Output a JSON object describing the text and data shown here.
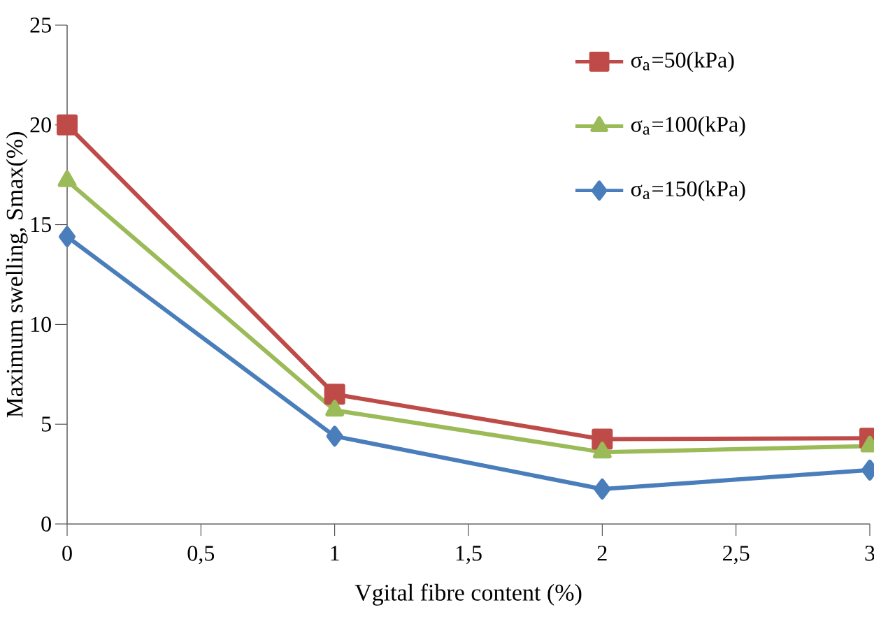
{
  "chart_data": {
    "type": "line",
    "xlabel": "Vgital fibre content (%)",
    "ylabel": "Maximum swelling, Smax(%)",
    "x": [
      0,
      1,
      2,
      3
    ],
    "xlim": [
      0,
      3
    ],
    "xticks": [
      0,
      {
        "value": 0.5,
        "label": "0,5"
      },
      1,
      {
        "value": 1.5,
        "label": "1,5"
      },
      2,
      {
        "value": 2.5,
        "label": "2,5"
      },
      3
    ],
    "ylim": [
      0,
      25
    ],
    "yticks": [
      0,
      5,
      10,
      15,
      20,
      25
    ],
    "grid": false,
    "legend": "top right",
    "line_style": "solid",
    "series": [
      {
        "name": "σ$_{a}$=50(kPa)",
        "color": "#be4b48",
        "marker": "square",
        "values": [
          20,
          6.5,
          4.25,
          4.3
        ]
      },
      {
        "name": "σ$_{a}$=100(kPa)",
        "color": "#9bbb59",
        "marker": "triangle",
        "values": [
          17.2,
          5.7,
          3.6,
          3.9
        ]
      },
      {
        "name": "σ$_{a}$=150(kPa)",
        "color": "#4a7ebb",
        "marker": "diamond",
        "values": [
          14.4,
          4.4,
          1.75,
          2.7
        ]
      }
    ]
  }
}
